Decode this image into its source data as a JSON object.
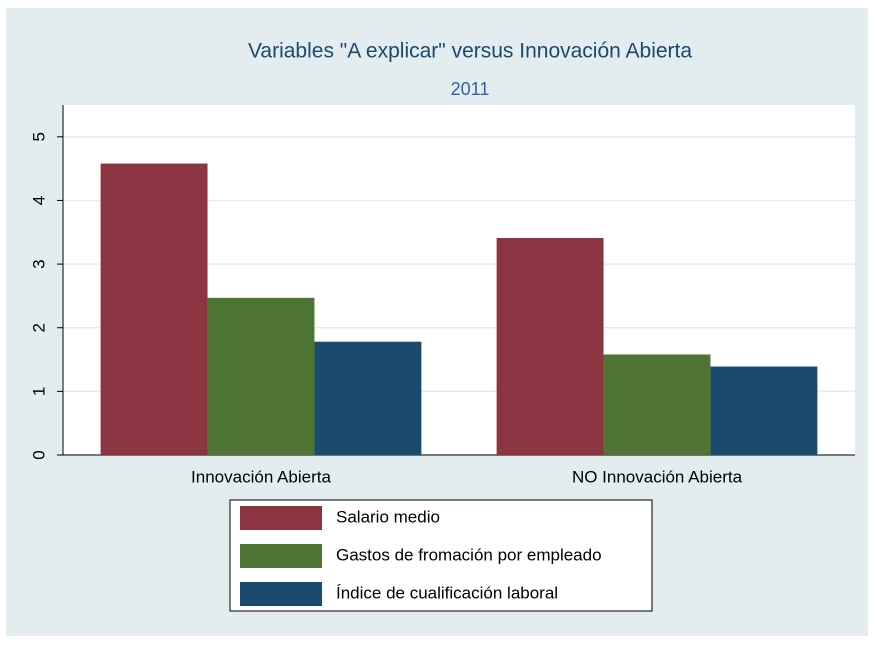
{
  "chart_data": {
    "type": "bar",
    "title": "Variables \"A explicar\" versus Innovación Abierta",
    "subtitle": "2011",
    "categories": [
      "Innovación Abierta",
      "NO Innovación Abierta"
    ],
    "series": [
      {
        "name": "Salario medio",
        "color": "#8b3540",
        "values": [
          4.58,
          3.41
        ]
      },
      {
        "name": "Gastos de fromación por empleado",
        "color": "#4f7535",
        "values": [
          2.47,
          1.58
        ]
      },
      {
        "name": "Índice de cualificación laboral",
        "color": "#1a4a6e",
        "values": [
          1.78,
          1.39
        ]
      }
    ],
    "ylim": [
      0,
      5.5
    ],
    "yticks": [
      0,
      1,
      2,
      3,
      4,
      5
    ],
    "grid": true,
    "legend": "bottom"
  }
}
